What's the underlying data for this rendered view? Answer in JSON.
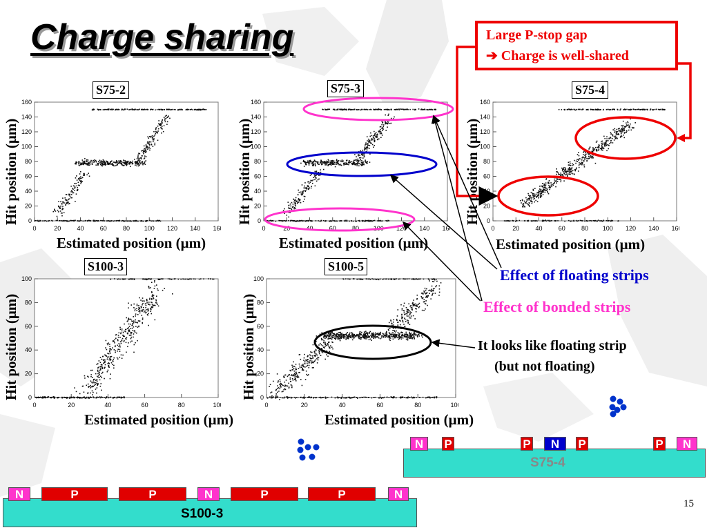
{
  "title": "Charge sharing",
  "note": {
    "line1": "Large P-stop gap",
    "line2": "➔ Charge is well-shared"
  },
  "plots": [
    {
      "label": "S75-2",
      "ylabel": "Hit position (μm)",
      "xlabel": "Estimated position (μm)",
      "xticks": [
        "0",
        "20",
        "40",
        "60",
        "80",
        "100",
        "120",
        "140",
        "160"
      ],
      "yticks": [
        "0",
        "20",
        "40",
        "60",
        "80",
        "100",
        "120",
        "140",
        "160"
      ]
    },
    {
      "label": "S75-3",
      "ylabel": "Hit position (μm)",
      "xlabel": "Estimated position (μm)",
      "xticks": [
        "0",
        "20",
        "40",
        "60",
        "80",
        "100",
        "120",
        "140",
        "160"
      ],
      "yticks": [
        "0",
        "20",
        "40",
        "60",
        "80",
        "100",
        "120",
        "140",
        "160"
      ]
    },
    {
      "label": "S75-4",
      "ylabel": "Hit position (μm)",
      "xlabel": "Estimated position (μm)",
      "xticks": [
        "0",
        "20",
        "40",
        "60",
        "80",
        "100",
        "120",
        "140",
        "160"
      ],
      "yticks": [
        "0",
        "20",
        "40",
        "60",
        "80",
        "100",
        "120",
        "140",
        "160"
      ]
    },
    {
      "label": "S100-3",
      "ylabel": "Hit position (μm)",
      "xlabel": "Estimated position (μm)",
      "xticks": [
        "0",
        "20",
        "40",
        "60",
        "80",
        "100"
      ],
      "yticks": [
        "0",
        "20",
        "40",
        "60",
        "80",
        "100"
      ]
    },
    {
      "label": "S100-5",
      "ylabel": "Hit position (μm)",
      "xlabel": "Estimated position (μm)",
      "xticks": [
        "0",
        "20",
        "40",
        "60",
        "80",
        "100"
      ],
      "yticks": [
        "0",
        "20",
        "40",
        "60",
        "80",
        "100"
      ]
    }
  ],
  "annotations": {
    "floating": "Effect of floating strips",
    "bonded": "Effect of bonded strips",
    "looks_line1": "It looks like floating strip",
    "looks_line2": "(but not floating)"
  },
  "strips": {
    "s75_4": {
      "name": "S75-4",
      "segments": [
        "N",
        "P",
        "P",
        "N",
        "P",
        "P",
        "N"
      ]
    },
    "s100_3": {
      "name": "S100-3",
      "segments": [
        "N",
        "P",
        "P",
        "N",
        "P",
        "P",
        "N"
      ]
    }
  },
  "page_number": "15",
  "colors": {
    "red": "#e00000",
    "magenta": "#ff33cc",
    "blue": "#0000cc",
    "strip": "#33ddcc"
  }
}
